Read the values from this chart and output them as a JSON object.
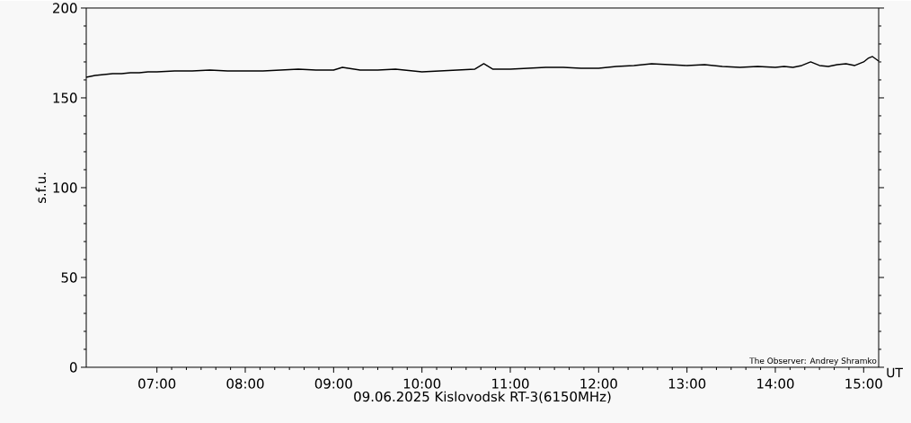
{
  "chart_data": {
    "type": "line",
    "xlabel": "09.06.2025 Kislovodsk RT-3(6150MHz)",
    "ylabel": "s.f.u.",
    "annotations": [
      "The Observer: Andrey Shramko",
      "UT"
    ],
    "xlim": [
      6.2,
      15.17
    ],
    "ylim": [
      0,
      200
    ],
    "xticks": [
      {
        "value": 7,
        "label": "07:00"
      },
      {
        "value": 8,
        "label": "08:00"
      },
      {
        "value": 9,
        "label": "09:00"
      },
      {
        "value": 10,
        "label": "10:00"
      },
      {
        "value": 11,
        "label": "11:00"
      },
      {
        "value": 12,
        "label": "12:00"
      },
      {
        "value": 13,
        "label": "13:00"
      },
      {
        "value": 14,
        "label": "14:00"
      },
      {
        "value": 15,
        "label": "15:00"
      }
    ],
    "yticks": [
      0,
      50,
      100,
      150,
      200
    ],
    "series": [
      {
        "color": "#000000",
        "x": [
          6.2,
          6.3,
          6.4,
          6.5,
          6.6,
          6.7,
          6.8,
          6.9,
          7.0,
          7.2,
          7.4,
          7.6,
          7.8,
          8.0,
          8.2,
          8.4,
          8.6,
          8.8,
          9.0,
          9.1,
          9.3,
          9.5,
          9.7,
          9.9,
          10.0,
          10.2,
          10.4,
          10.6,
          10.7,
          10.8,
          11.0,
          11.2,
          11.4,
          11.6,
          11.8,
          12.0,
          12.2,
          12.4,
          12.6,
          12.8,
          13.0,
          13.2,
          13.4,
          13.6,
          13.8,
          14.0,
          14.1,
          14.2,
          14.3,
          14.4,
          14.5,
          14.6,
          14.7,
          14.8,
          14.9,
          15.0,
          15.05,
          15.1,
          15.17
        ],
        "values": [
          161.5,
          162.5,
          163,
          163.5,
          163.5,
          164,
          164,
          164.5,
          164.5,
          165,
          165,
          165.5,
          165,
          165,
          165,
          165.5,
          166,
          165.5,
          165.5,
          167,
          165.5,
          165.5,
          166,
          165,
          164.5,
          165,
          165.5,
          166,
          169,
          166,
          166,
          166.5,
          167,
          167,
          166.5,
          166.5,
          167.5,
          168,
          169,
          168.5,
          168,
          168.5,
          167.5,
          167,
          167.5,
          167,
          167.5,
          167,
          168,
          170,
          168,
          167.5,
          168.5,
          169,
          168,
          170,
          172,
          173,
          170.5
        ]
      }
    ]
  }
}
